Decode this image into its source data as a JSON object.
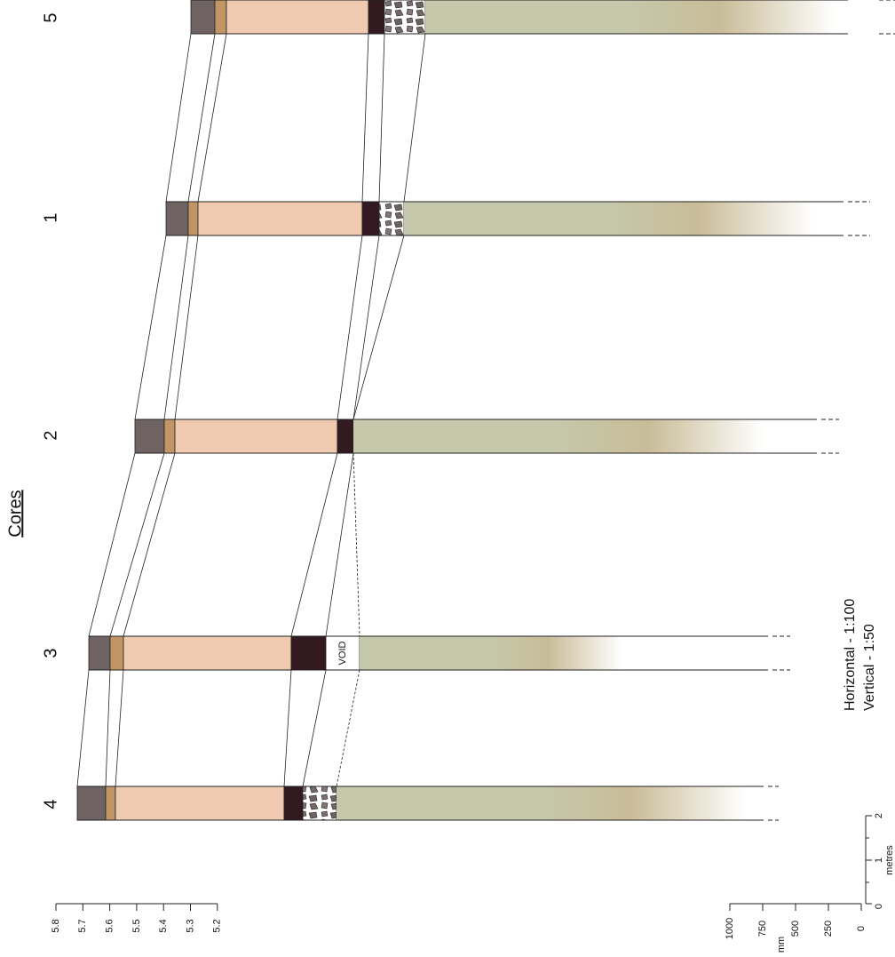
{
  "title": "Cores",
  "cores": [
    {
      "label": "5"
    },
    {
      "label": "1"
    },
    {
      "label": "2"
    },
    {
      "label": "3",
      "note": "VOID"
    },
    {
      "label": "4"
    }
  ],
  "elevation_scale": {
    "ticks": [
      "5.8",
      "5.7",
      "5.6",
      "5.5",
      "5.4",
      "5.3",
      "5.2"
    ]
  },
  "depth_scale": {
    "ticks": [
      "1000",
      "750",
      "500",
      "250",
      "0"
    ],
    "unit": "mm"
  },
  "distance_scale": {
    "ticks": [
      "0",
      "1",
      "2"
    ],
    "unit": "metres"
  },
  "scale_notes": [
    "Horizontal - 1:100",
    "Vertical - 1:50"
  ]
}
